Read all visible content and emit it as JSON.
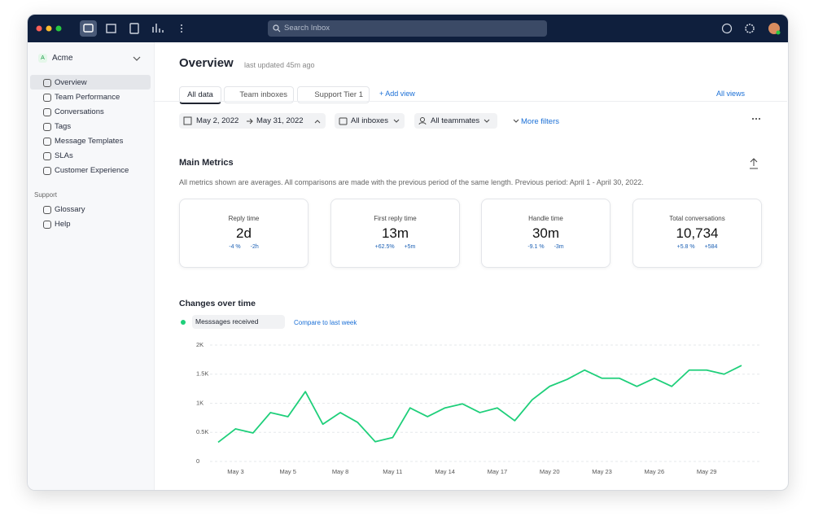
{
  "search_placeholder": "Search Inbox",
  "sidebar": {
    "workspace_badge": "A",
    "workspace": "Acme",
    "items": [
      "Overview",
      "Team Performance",
      "Conversations",
      "Tags",
      "Message Templates",
      "SLAs",
      "Customer Experience"
    ],
    "section": "Support",
    "support_items": [
      "Glossary",
      "Help"
    ]
  },
  "header": {
    "title": "Overview",
    "updated": "last updated 45m ago"
  },
  "tabs": [
    "All data",
    "Team inboxes",
    "Support Tier 1"
  ],
  "add_view": "+ Add view",
  "all_views": "All views",
  "filters": {
    "start": "May 2, 2022",
    "end": "May 31, 2022",
    "inboxes": "All inboxes",
    "teammates": "All teammates",
    "more": "More filters"
  },
  "metrics": {
    "title": "Main Metrics",
    "note": "All metrics shown are averages. All comparisons are made with the previous period of the same length. Previous period: April 1 - April 30, 2022.",
    "cards": [
      {
        "label": "Reply time",
        "value": "2d",
        "change": "-4 %",
        "delta": "-2h"
      },
      {
        "label": "First reply time",
        "value": "13m",
        "change": "+62.5%",
        "delta": "+5m"
      },
      {
        "label": "Handle time",
        "value": "30m",
        "change": "-9.1 %",
        "delta": "-3m"
      },
      {
        "label": "Total conversations",
        "value": "10,734",
        "change": "+5.8 %",
        "delta": "+584"
      }
    ]
  },
  "chart_data": {
    "type": "line",
    "title": "Changes over time",
    "compare": "Compare to last week",
    "categories": [
      null,
      "May 3",
      null,
      null,
      "May 5",
      null,
      null,
      "May 8",
      null,
      null,
      "May 11",
      null,
      null,
      "May 14",
      null,
      null,
      "May 17",
      null,
      null,
      "May 20",
      null,
      null,
      "May 23",
      null,
      null,
      "May 26",
      null,
      null,
      "May 29",
      null,
      null
    ],
    "series": [
      {
        "name": "Messsages received",
        "color": "#1ecf7a",
        "values": [
          330,
          560,
          490,
          840,
          770,
          1200,
          640,
          840,
          670,
          340,
          410,
          920,
          770,
          920,
          990,
          840,
          920,
          700,
          1060,
          1290,
          1410,
          1570,
          1430,
          1430,
          1290,
          1430,
          1290,
          1570,
          1570,
          1500,
          1650
        ]
      }
    ],
    "ylim": [
      0,
      2000
    ],
    "yticks": [
      0,
      {
        "value": 500,
        "label": "0.5K"
      },
      {
        "value": 1000,
        "label": "1K"
      },
      {
        "value": 1500,
        "label": "1.5K"
      },
      {
        "value": 2000,
        "label": "2K"
      }
    ],
    "grid": true
  }
}
